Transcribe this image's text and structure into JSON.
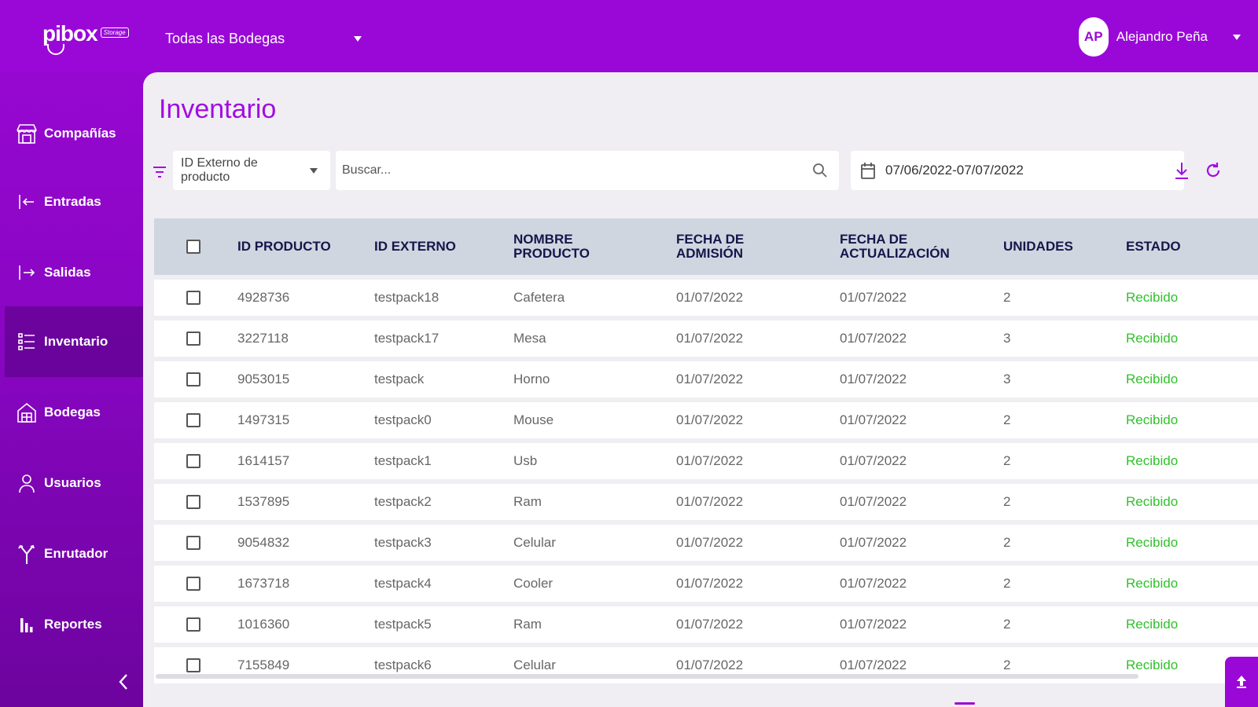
{
  "app": {
    "brand": "pibox",
    "brand_tag": "Storage"
  },
  "header": {
    "warehouse_selector": "Todas las Bodegas",
    "user": {
      "initials": "AP",
      "name": "Alejandro Peña"
    }
  },
  "sidebar": {
    "items": [
      {
        "label": "Compañías",
        "icon": "store-icon"
      },
      {
        "label": "Entradas",
        "icon": "arrow-in-icon"
      },
      {
        "label": "Salidas",
        "icon": "arrow-out-icon"
      },
      {
        "label": "Inventario",
        "icon": "list-icon",
        "active": true
      },
      {
        "label": "Bodegas",
        "icon": "warehouse-icon"
      },
      {
        "label": "Usuarios",
        "icon": "user-icon"
      },
      {
        "label": "Enrutador",
        "icon": "router-icon"
      },
      {
        "label": "Reportes",
        "icon": "bar-chart-icon"
      }
    ]
  },
  "main": {
    "title": "Inventario",
    "filter": {
      "selected": "ID Externo de producto"
    },
    "search": {
      "placeholder": "Buscar..."
    },
    "date_range": "07/06/2022-07/07/2022",
    "table": {
      "columns": [
        "ID PRODUCTO",
        "ID EXTERNO",
        "NOMBRE PRODUCTO",
        "FECHA DE ADMISIÓN",
        "FECHA DE ACTUALIZACIÓN",
        "UNIDADES",
        "ESTADO"
      ],
      "rows": [
        {
          "id": "4928736",
          "ext": "testpack18",
          "name": "Cafetera",
          "admission": "01/07/2022",
          "updated": "01/07/2022",
          "units": "2",
          "status": "Recibido"
        },
        {
          "id": "3227118",
          "ext": "testpack17",
          "name": "Mesa",
          "admission": "01/07/2022",
          "updated": "01/07/2022",
          "units": "3",
          "status": "Recibido"
        },
        {
          "id": "9053015",
          "ext": "testpack",
          "name": "Horno",
          "admission": "01/07/2022",
          "updated": "01/07/2022",
          "units": "3",
          "status": "Recibido"
        },
        {
          "id": "1497315",
          "ext": "testpack0",
          "name": "Mouse",
          "admission": "01/07/2022",
          "updated": "01/07/2022",
          "units": "2",
          "status": "Recibido"
        },
        {
          "id": "1614157",
          "ext": "testpack1",
          "name": "Usb",
          "admission": "01/07/2022",
          "updated": "01/07/2022",
          "units": "2",
          "status": "Recibido"
        },
        {
          "id": "1537895",
          "ext": "testpack2",
          "name": "Ram",
          "admission": "01/07/2022",
          "updated": "01/07/2022",
          "units": "2",
          "status": "Recibido"
        },
        {
          "id": "9054832",
          "ext": "testpack3",
          "name": "Celular",
          "admission": "01/07/2022",
          "updated": "01/07/2022",
          "units": "2",
          "status": "Recibido"
        },
        {
          "id": "1673718",
          "ext": "testpack4",
          "name": "Cooler",
          "admission": "01/07/2022",
          "updated": "01/07/2022",
          "units": "2",
          "status": "Recibido"
        },
        {
          "id": "1016360",
          "ext": "testpack5",
          "name": "Ram",
          "admission": "01/07/2022",
          "updated": "01/07/2022",
          "units": "2",
          "status": "Recibido"
        },
        {
          "id": "7155849",
          "ext": "testpack6",
          "name": "Celular",
          "admission": "01/07/2022",
          "updated": "01/07/2022",
          "units": "2",
          "status": "Recibido"
        }
      ]
    }
  },
  "colors": {
    "brand": "#9a08d8",
    "title": "#a10de0",
    "status_ok": "#30c12b",
    "header_row": "#cfd6e0"
  }
}
